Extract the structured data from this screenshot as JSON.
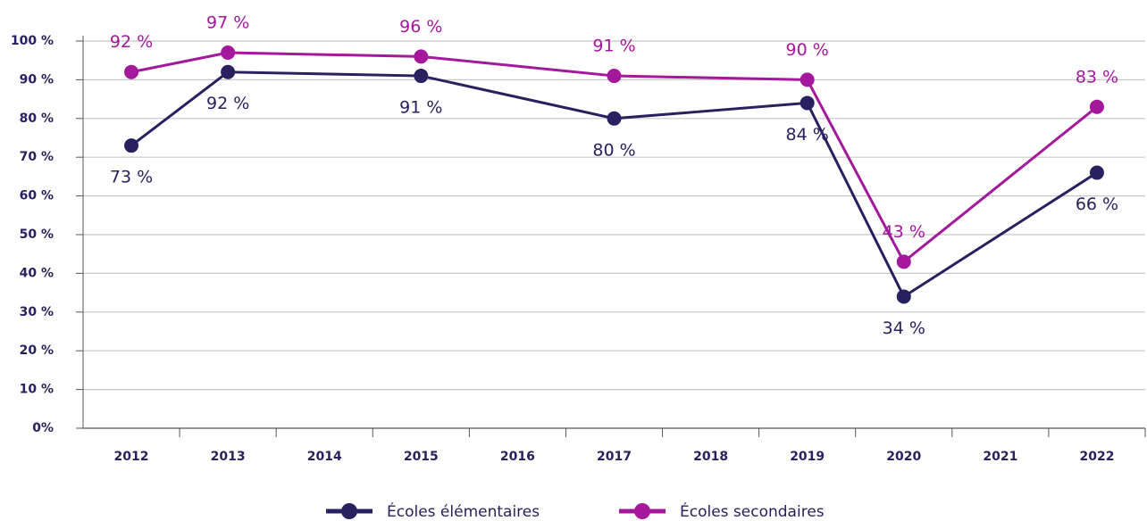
{
  "chart_data": {
    "type": "line",
    "x": [
      2012,
      2013,
      2015,
      2017,
      2019,
      2020,
      2022
    ],
    "xlim": [
      2011.5,
      2022.5
    ],
    "xticks": [
      2012,
      2013,
      2014,
      2015,
      2016,
      2017,
      2018,
      2019,
      2020,
      2021,
      2022
    ],
    "ylim": [
      0,
      100
    ],
    "yticks": [
      {
        "value": 0,
        "label": "0%"
      },
      {
        "value": 10,
        "label": "10 %"
      },
      {
        "value": 20,
        "label": "20 %"
      },
      {
        "value": 30,
        "label": "30 %"
      },
      {
        "value": 40,
        "label": "40 %"
      },
      {
        "value": 50,
        "label": "50 %"
      },
      {
        "value": 60,
        "label": "60 %"
      },
      {
        "value": 70,
        "label": "70 %"
      },
      {
        "value": 80,
        "label": "80 %"
      },
      {
        "value": 90,
        "label": "90 %"
      },
      {
        "value": 100,
        "label": "100 %"
      }
    ],
    "grid": true,
    "legend": "bottom",
    "series": [
      {
        "name": "Écoles élémentaires",
        "color": "#27225f",
        "values": [
          73,
          92,
          91,
          80,
          84,
          34,
          66
        ],
        "value_labels": [
          "73 %",
          "92 %",
          "91 %",
          "80 %",
          "84 %",
          "34 %",
          "66 %"
        ]
      },
      {
        "name": "Écoles secondaires",
        "color": "#a4189c",
        "values": [
          92,
          97,
          96,
          91,
          90,
          43,
          83
        ],
        "value_labels": [
          "92 %",
          "97 %",
          "96 %",
          "91 %",
          "90 %",
          "43 %",
          "83 %"
        ]
      }
    ]
  }
}
